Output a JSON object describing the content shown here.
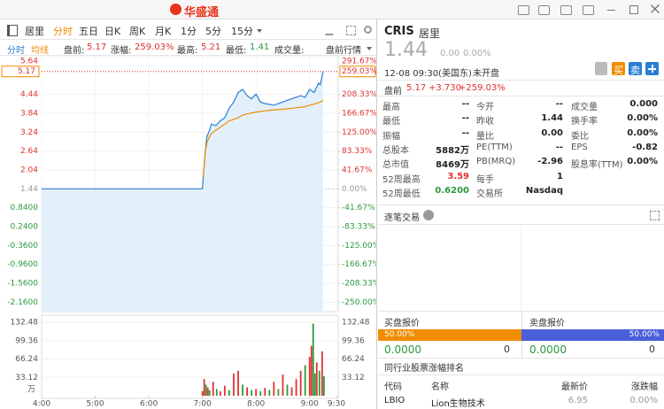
{
  "top_bar": {
    "logo": "华盛通"
  },
  "toolbar": {
    "symbol_name": "居里",
    "tabs": [
      "分时",
      "五日",
      "日K",
      "周K",
      "月K",
      "1分",
      "5分",
      "15分"
    ]
  },
  "info_row": {
    "pre_label": "盘前:",
    "pre_value": "5.17",
    "change_label": "涨幅:",
    "change_value": "259.03%",
    "high_label": "最高:",
    "high_value": "5.21",
    "low_label": "最低:",
    "low_value": "1.41",
    "volume_label": "成交量:",
    "mode": "盘前行情"
  },
  "chart_data": [
    {
      "type": "line",
      "x": [
        "4:00",
        "7:00",
        "7:01",
        "7:03",
        "7:05",
        "7:08",
        "7:10",
        "7:15",
        "7:20",
        "7:25",
        "7:30",
        "7:35",
        "7:40",
        "7:45",
        "7:50",
        "7:55",
        "8:00",
        "8:05",
        "8:10",
        "8:20",
        "8:30",
        "8:40",
        "8:50",
        "8:55",
        "9:00",
        "9:05",
        "9:10",
        "9:12",
        "9:15"
      ],
      "series": [
        {
          "name": "分时",
          "color": "#2a7fd4",
          "values": [
            1.44,
            1.44,
            1.8,
            2.6,
            3.1,
            3.3,
            3.5,
            3.45,
            3.6,
            3.7,
            4.0,
            4.2,
            4.5,
            4.6,
            4.4,
            4.3,
            4.45,
            4.2,
            4.15,
            4.1,
            4.2,
            4.3,
            4.4,
            4.35,
            4.6,
            4.5,
            4.8,
            4.75,
            5.17
          ]
        },
        {
          "name": "均线",
          "color": "#f08c00",
          "values": [
            null,
            null,
            1.8,
            2.6,
            2.9,
            3.1,
            3.2,
            3.3,
            3.4,
            3.5,
            3.6,
            3.65,
            3.7,
            3.78,
            3.82,
            3.85,
            3.88,
            3.9,
            3.92,
            3.95,
            3.97,
            4.0,
            4.03,
            4.05,
            4.1,
            4.13,
            4.18,
            4.2,
            4.25
          ]
        }
      ],
      "xlim": [
        "4:00",
        "9:30"
      ],
      "xticks": [
        "4:00",
        "5:00",
        "6:00",
        "7:00",
        "8:00",
        "9:00",
        "9:30"
      ],
      "ylim": [
        -2.46,
        5.64
      ],
      "yticks": [
        5.64,
        4.44,
        3.84,
        3.24,
        2.64,
        2.04,
        1.44,
        {
          "value": 0.84,
          "label": "0.8400"
        },
        {
          "value": 0.24,
          "label": "0.2400"
        },
        {
          "value": -0.36,
          "label": "-0.3600"
        },
        {
          "value": -0.96,
          "label": "-0.9600"
        },
        {
          "value": -1.56,
          "label": "-1.5600"
        },
        {
          "value": -2.16,
          "label": "-2.1600"
        }
      ],
      "y2lim": [
        -270.83,
        291.67
      ],
      "y2ticks": [
        {
          "value": 291.67,
          "label": "291.67%"
        },
        {
          "value": 208.33,
          "label": "208.33%"
        },
        {
          "value": 166.67,
          "label": "166.67%"
        },
        {
          "value": 125,
          "label": "125.00%"
        },
        {
          "value": 83.33,
          "label": "83.33%"
        },
        {
          "value": 41.67,
          "label": "41.67%"
        },
        {
          "value": 0,
          "label": "0.00%"
        },
        {
          "value": -41.67,
          "label": "-41.67%"
        },
        {
          "value": -83.33,
          "label": "-83.33%"
        },
        {
          "value": -125,
          "label": "-125.00%"
        },
        {
          "value": -166.67,
          "label": "-166.67%"
        },
        {
          "value": -208.33,
          "label": "-208.33%"
        },
        {
          "value": -250,
          "label": "-250.00%"
        }
      ],
      "marker": 5.17,
      "marker2": {
        "value": 259.03,
        "label": "259.03%"
      },
      "grid": true
    },
    {
      "type": "bar",
      "x": [
        "7:00",
        "7:02",
        "7:04",
        "7:06",
        "7:08",
        "7:12",
        "7:16",
        "7:20",
        "7:25",
        "7:30",
        "7:35",
        "7:40",
        "7:45",
        "7:50",
        "7:55",
        "8:00",
        "8:05",
        "8:10",
        "8:15",
        "8:20",
        "8:25",
        "8:30",
        "8:35",
        "8:40",
        "8:45",
        "8:50",
        "8:55",
        "9:00",
        "9:02",
        "9:04",
        "9:06",
        "9:08",
        "9:11",
        "9:14",
        "9:16"
      ],
      "values": [
        8,
        30,
        20,
        15,
        10,
        25,
        12,
        8,
        18,
        10,
        40,
        45,
        20,
        15,
        10,
        12,
        8,
        14,
        10,
        25,
        12,
        38,
        20,
        15,
        30,
        45,
        55,
        70,
        90,
        130,
        40,
        60,
        45,
        80,
        35
      ],
      "colors": [
        "#e03131",
        "#e03131",
        "#2b9a3e",
        "#e03131",
        "#2b9a3e",
        "#e03131",
        "#2b9a3e",
        "#e03131",
        "#e03131",
        "#2b9a3e",
        "#e03131",
        "#e03131",
        "#2b9a3e",
        "#e03131",
        "#2b9a3e",
        "#e03131",
        "#2b9a3e",
        "#e03131",
        "#2b9a3e",
        "#e03131",
        "#2b9a3e",
        "#e03131",
        "#2b9a3e",
        "#e03131",
        "#e03131",
        "#e03131",
        "#2b9a3e",
        "#e03131",
        "#e03131",
        "#2b9a3e",
        "#2b9a3e",
        "#e03131",
        "#2b9a3e",
        "#e03131",
        "#2b9a3e"
      ],
      "ylim": [
        0,
        132.48
      ],
      "yticks": [
        132.48,
        99.36,
        66.24,
        33.12
      ],
      "unit": "万"
    }
  ],
  "quote": {
    "code": "CRIS",
    "name": "居里",
    "price": "1.44",
    "change": "0.00",
    "change_pct": "0.00%",
    "time": "12-08 09:30(美国东)",
    "status": "未开盘",
    "buy": "买",
    "sell": "卖",
    "pre_label": "盘前",
    "pre_price": "5.17",
    "pre_change": "+3.730",
    "pre_change_pct": "+259.03%"
  },
  "stats": [
    [
      [
        "最高",
        "--"
      ],
      [
        "今开",
        "--"
      ],
      [
        "成交量",
        "0.000"
      ]
    ],
    [
      [
        "最低",
        "--"
      ],
      [
        "昨收",
        "1.44"
      ],
      [
        "换手率",
        "0.00%"
      ]
    ],
    [
      [
        "振幅",
        "--"
      ],
      [
        "量比",
        "0.00"
      ],
      [
        "委比",
        "0.00%"
      ]
    ],
    [
      [
        "总股本",
        "5882万"
      ],
      [
        "PE(TTM)",
        "--"
      ],
      [
        "EPS",
        "-0.82"
      ]
    ],
    [
      [
        "总市值",
        "8469万"
      ],
      [
        "PB(MRQ)",
        "-2.96"
      ],
      [
        "股息率(TTM)",
        "0.00%"
      ]
    ],
    [
      [
        "52周最高",
        "3.59"
      ],
      [
        "每手",
        "1"
      ]
    ],
    [
      [
        "52周最低",
        "0.6200"
      ],
      [
        "交易所",
        "Nasdaq"
      ]
    ]
  ],
  "ticks_panel": {
    "title": "逐笔交易"
  },
  "order_book": {
    "bid_title": "买盘报价",
    "ask_title": "卖盘报价",
    "bid_ratio": "50.00%",
    "ask_ratio": "50.00%",
    "bid_price": "0.0000",
    "bid_size": "0",
    "ask_price": "0.0000",
    "ask_size": "0"
  },
  "industry": {
    "title": "同行业股票涨幅排名",
    "columns": [
      "代码",
      "名称",
      "最新价",
      "涨跌幅"
    ],
    "rows": [
      [
        "LBIO",
        "Lion生物技术",
        "6.95",
        "0.00%"
      ]
    ]
  }
}
